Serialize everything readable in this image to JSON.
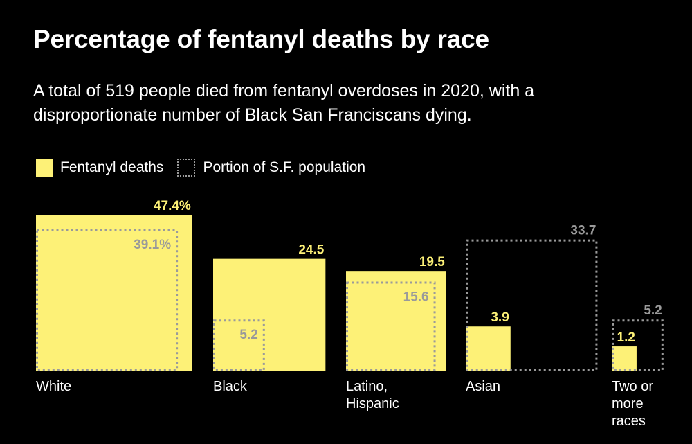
{
  "header": {
    "title": "Percentage of fentanyl deaths by race",
    "subtitle": "A total of 519 people died from fentanyl overdoses in 2020, with a disproportionate number of Black San Franciscans dying."
  },
  "legend": {
    "deaths_label": "Fentanyl deaths",
    "population_label": "Portion of S.F. population"
  },
  "colors": {
    "background": "#000000",
    "deaths": "#fdf177",
    "population": "#9a9a9a",
    "text": "#ffffff"
  },
  "chart_data": {
    "type": "bar",
    "title": "Percentage of fentanyl deaths by race",
    "subtitle": "A total of 519 people died from fentanyl overdoses in 2020, with a disproportionate number of Black San Franciscans dying.",
    "categories": [
      "White",
      "Black",
      "Latino, Hispanic",
      "Asian",
      "Two or more races"
    ],
    "category_label_lines": [
      [
        "White"
      ],
      [
        "Black"
      ],
      [
        "Latino,",
        "Hispanic"
      ],
      [
        "Asian"
      ],
      [
        "Two or",
        "more",
        "races"
      ]
    ],
    "series": [
      {
        "name": "Fentanyl deaths",
        "values": [
          47.4,
          24.5,
          19.5,
          3.9,
          1.2
        ],
        "labels": [
          "47.4%",
          "24.5",
          "19.5",
          "3.9",
          "1.2"
        ]
      },
      {
        "name": "Portion of S.F. population",
        "values": [
          39.1,
          5.2,
          15.6,
          33.7,
          5.2
        ],
        "labels": [
          "39.1%",
          "5.2",
          "15.6",
          "33.7",
          "5.2"
        ]
      }
    ],
    "encoding": "square area proportional to percentage",
    "unit": "%"
  }
}
